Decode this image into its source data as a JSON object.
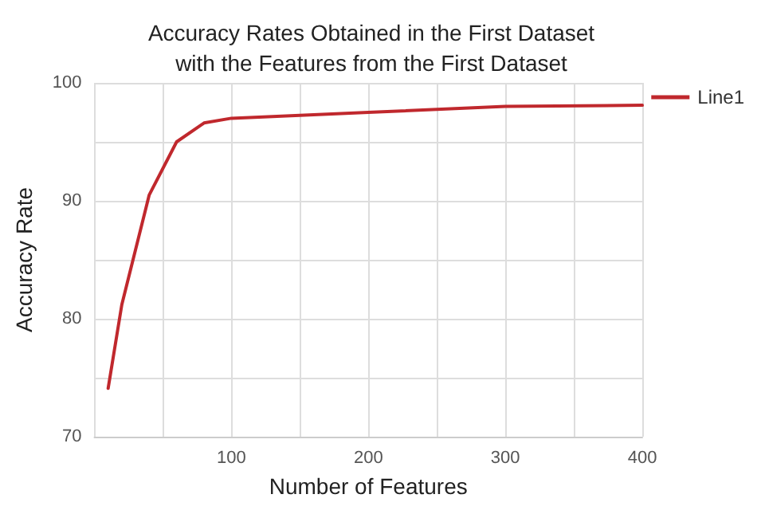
{
  "chart_data": {
    "type": "line",
    "title": "Accuracy Rates Obtained in the First Dataset\nwith the Features from the First Dataset",
    "xlabel": "Number of Features",
    "ylabel": "Accuracy Rate",
    "x": [
      10,
      20,
      40,
      60,
      80,
      100,
      200,
      300,
      400
    ],
    "series": [
      {
        "name": "Line1",
        "color": "#c0282d",
        "values": [
          74.1,
          81.2,
          90.5,
          95.0,
          96.6,
          97.0,
          97.5,
          98.0,
          98.1
        ]
      }
    ],
    "xlim": [
      0,
      400
    ],
    "xticks": [
      {
        "value": 0,
        "label": null
      },
      {
        "value": 50,
        "label": null
      },
      100,
      {
        "value": 150,
        "label": null
      },
      200,
      {
        "value": 250,
        "label": null
      },
      300,
      {
        "value": 350,
        "label": null
      },
      400
    ],
    "ylim": [
      70,
      100
    ],
    "yticks": [
      70,
      {
        "value": 75,
        "label": null
      },
      80,
      {
        "value": 85,
        "label": null
      },
      90,
      {
        "value": 95,
        "label": null
      },
      100
    ],
    "grid": true,
    "legend": "top right",
    "marker": "none",
    "line_style": "solid"
  }
}
